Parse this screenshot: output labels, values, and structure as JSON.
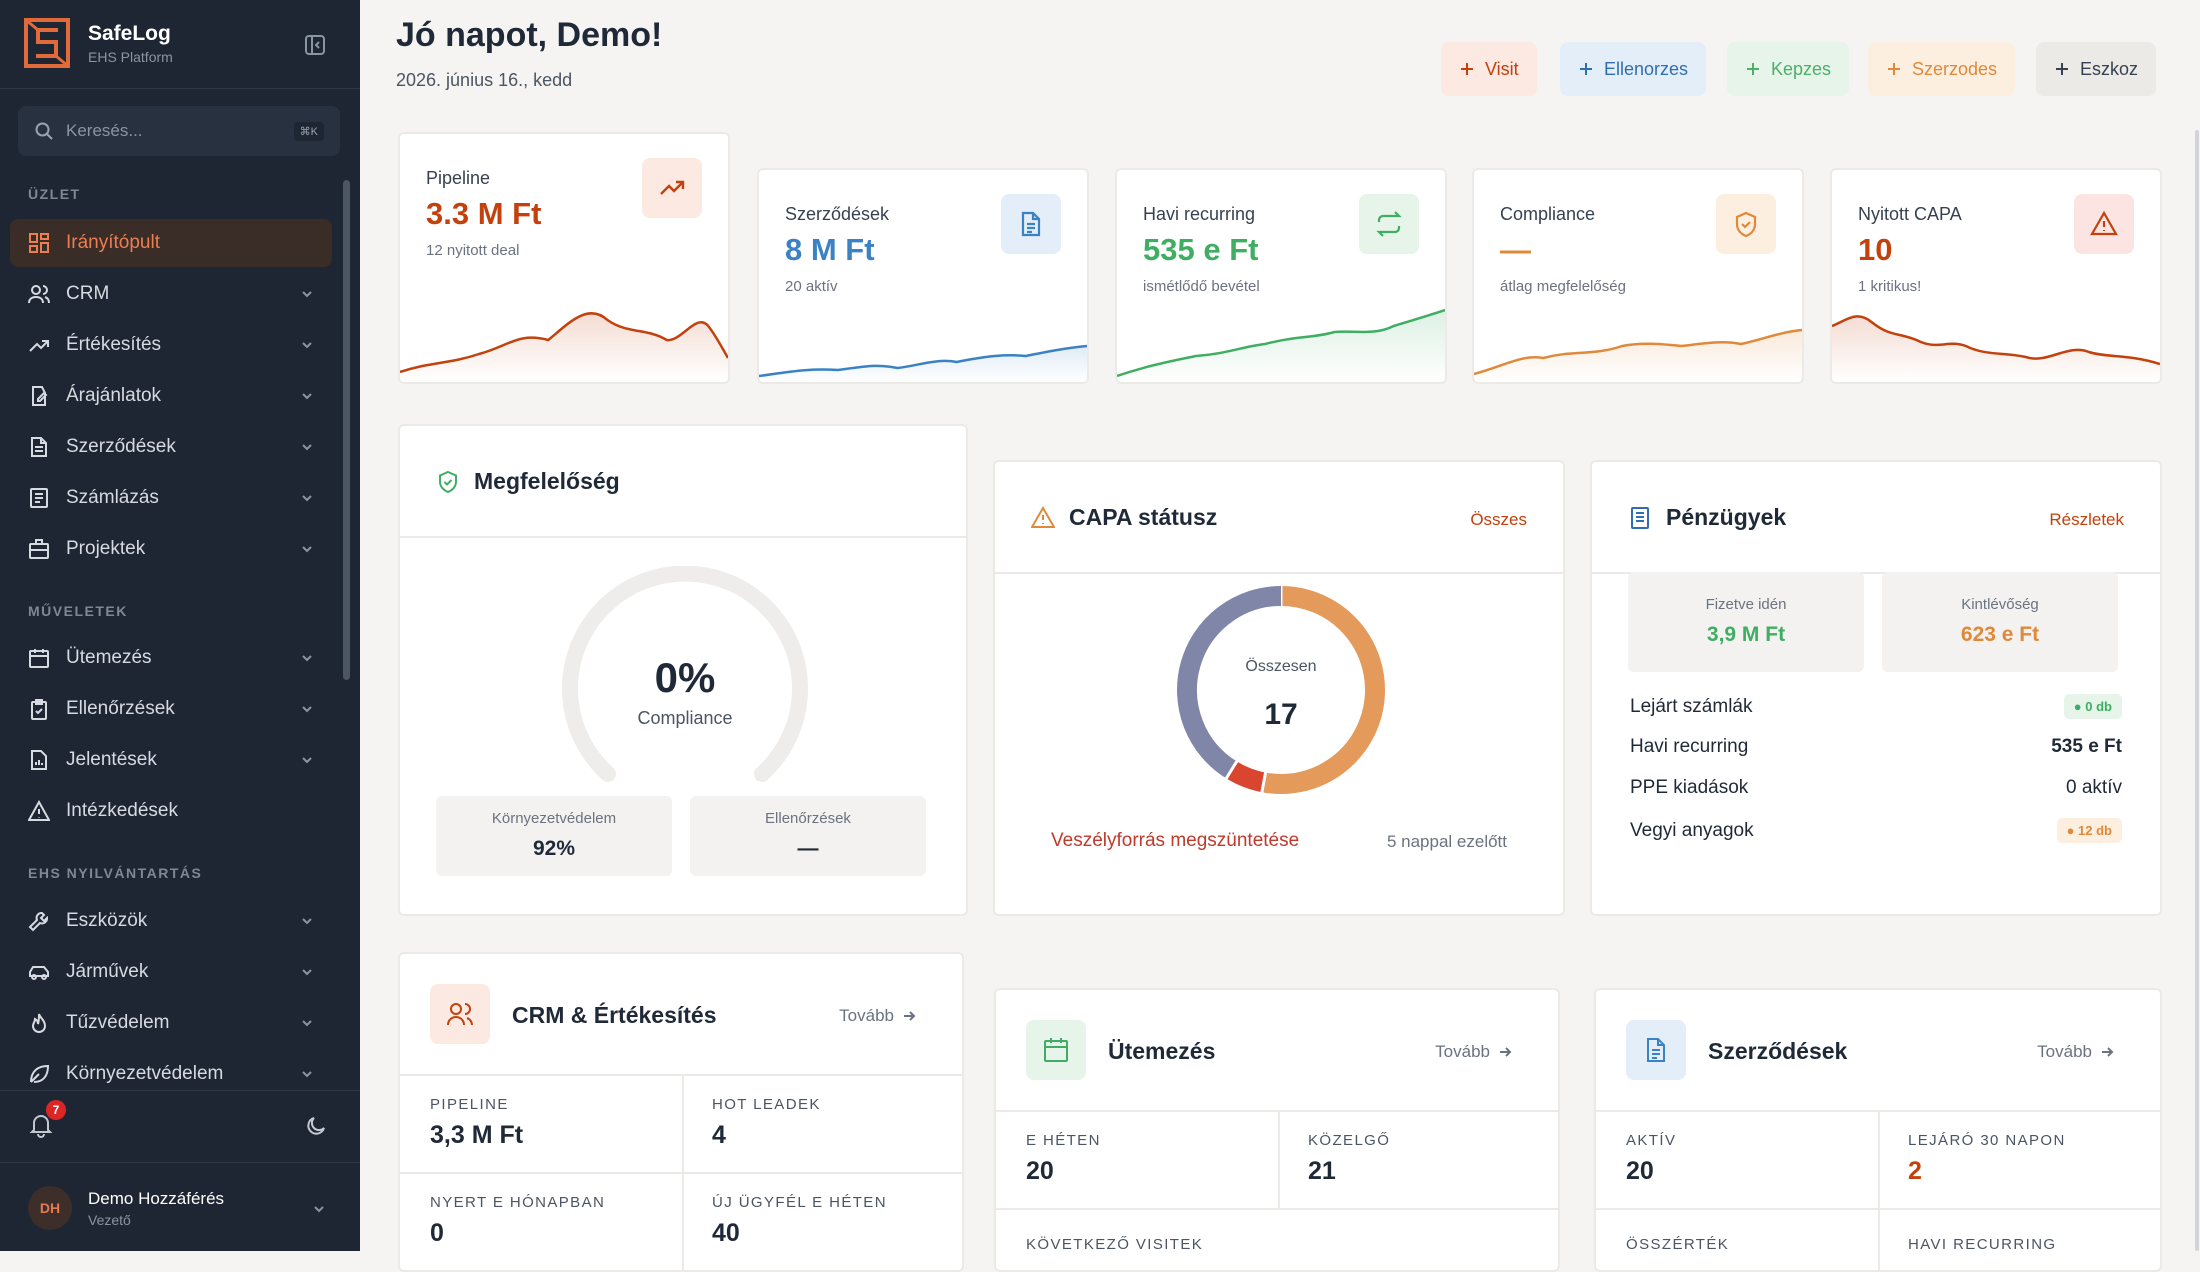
{
  "app": {
    "name": "SafeLog",
    "subtitle": "EHS Platform"
  },
  "search": {
    "placeholder": "Keresés...",
    "shortcut": "⌘K"
  },
  "sidebar": {
    "sections": [
      "ÜZLET",
      "MŰVELETEK",
      "EHS NYILVÁNTARTÁS"
    ],
    "items": [
      {
        "label": "Irányítópult",
        "icon": "dashboard-icon",
        "active": true
      },
      {
        "label": "CRM",
        "icon": "users-icon"
      },
      {
        "label": "Értékesítés",
        "icon": "trending-up-icon"
      },
      {
        "label": "Árajánlatok",
        "icon": "quote-icon"
      },
      {
        "label": "Szerződések",
        "icon": "document-icon"
      },
      {
        "label": "Számlázás",
        "icon": "invoice-icon"
      },
      {
        "label": "Projektek",
        "icon": "briefcase-icon"
      },
      {
        "label": "Ütemezés",
        "icon": "calendar-icon"
      },
      {
        "label": "Ellenőrzések",
        "icon": "clipboard-check-icon"
      },
      {
        "label": "Jelentések",
        "icon": "report-icon"
      },
      {
        "label": "Intézkedések",
        "icon": "warning-icon"
      },
      {
        "label": "Eszközök",
        "icon": "wrench-icon"
      },
      {
        "label": "Járművek",
        "icon": "car-icon"
      },
      {
        "label": "Tűzvédelem",
        "icon": "flame-icon"
      },
      {
        "label": "Környezetvédelem",
        "icon": "leaf-icon"
      }
    ],
    "notifications_count": "7",
    "user": {
      "initials": "DH",
      "name": "Demo Hozzáférés",
      "role": "Vezető"
    }
  },
  "header": {
    "greeting": "Jó napot, Demo!",
    "date": "2026. június 16., kedd"
  },
  "quick_actions": [
    {
      "label": "Visit",
      "color": "#c2410c",
      "bg": "#fbe9e2"
    },
    {
      "label": "Ellenorzes",
      "color": "#2f6fb0",
      "bg": "#e3eef8"
    },
    {
      "label": "Kepzes",
      "color": "#4caf6a",
      "bg": "#e6f4ea"
    },
    {
      "label": "Szerzodes",
      "color": "#e0893a",
      "bg": "#fcefdf"
    },
    {
      "label": "Eszkoz",
      "color": "#374151",
      "bg": "#eceae7"
    }
  ],
  "kpis": [
    {
      "label": "Pipeline",
      "value": "3.3 M Ft",
      "sub": "12 nyitott deal",
      "color": "#c2410c",
      "icon": "trending-up-icon"
    },
    {
      "label": "Szerződések",
      "value": "8 M Ft",
      "sub": "20 aktív",
      "color": "#3b82c4",
      "icon": "document-icon"
    },
    {
      "label": "Havi recurring",
      "value": "535 e Ft",
      "sub": "ismétlődő bevétel",
      "color": "#3fae62",
      "icon": "repeat-icon"
    },
    {
      "label": "Compliance",
      "value": "—",
      "sub": "átlag megfelelőség",
      "color": "#e0893a",
      "icon": "shield-check-icon"
    },
    {
      "label": "Nyitott CAPA",
      "value": "10",
      "sub": "1 kritikus!",
      "color": "#c2410c",
      "icon": "alert-triangle-icon"
    }
  ],
  "compliance": {
    "title": "Megfelelőség",
    "percent": "0%",
    "percent_value": 0,
    "caption": "Compliance",
    "tiles": [
      {
        "label": "Környezetvédelem",
        "value": "92%"
      },
      {
        "label": "Ellenőrzések",
        "value": "—"
      }
    ]
  },
  "capa": {
    "title": "CAPA státusz",
    "link": "Összes",
    "total_label": "Összesen",
    "total": "17",
    "segments": [
      {
        "value": 9,
        "color": "#e39a5a"
      },
      {
        "value": 1,
        "color": "#d9452f"
      },
      {
        "value": 7,
        "color": "#8086a8"
      }
    ],
    "latest_item": "Veszélyforrás megszüntetése",
    "latest_time": "5 nappal ezelőtt"
  },
  "finance": {
    "title": "Pénzügyek",
    "link": "Részletek",
    "tiles": [
      {
        "label": "Fizetve idén",
        "value": "3,9 M Ft",
        "color": "#3fae62"
      },
      {
        "label": "Kintlévőség",
        "value": "623 e Ft",
        "color": "#e0893a"
      }
    ],
    "rows": [
      {
        "label": "Lejárt számlák",
        "value": "0 db"
      },
      {
        "label": "Havi recurring",
        "value": "535 e Ft"
      },
      {
        "label": "PPE kiadások",
        "value": "0 aktív"
      },
      {
        "label": "Vegyi anyagok",
        "value": "12 db"
      }
    ]
  },
  "crm": {
    "title": "CRM & Értékesítés",
    "more": "Tovább",
    "cells": [
      {
        "label": "PIPELINE",
        "value": "3,3 M Ft"
      },
      {
        "label": "HOT LEADEK",
        "value": "4"
      },
      {
        "label": "NYERT E HÓNAPBAN",
        "value": "0"
      },
      {
        "label": "ÚJ ÜGYFÉL E HÉTEN",
        "value": "40"
      }
    ]
  },
  "schedule": {
    "title": "Ütemezés",
    "more": "Tovább",
    "cells": [
      {
        "label": "E HÉTEN",
        "value": "20"
      },
      {
        "label": "KÖZELGŐ",
        "value": "21"
      }
    ],
    "next": "KÖVETKEZŐ VISITEK"
  },
  "contracts": {
    "title": "Szerződések",
    "more": "Tovább",
    "cells": [
      {
        "label": "AKTÍV",
        "value": "20"
      },
      {
        "label": "LEJÁRÓ 30 NAPON",
        "value": "2"
      },
      {
        "label": "ÖSSZÉRTÉK",
        "value": ""
      },
      {
        "label": "HAVI RECURRING",
        "value": ""
      }
    ]
  }
}
